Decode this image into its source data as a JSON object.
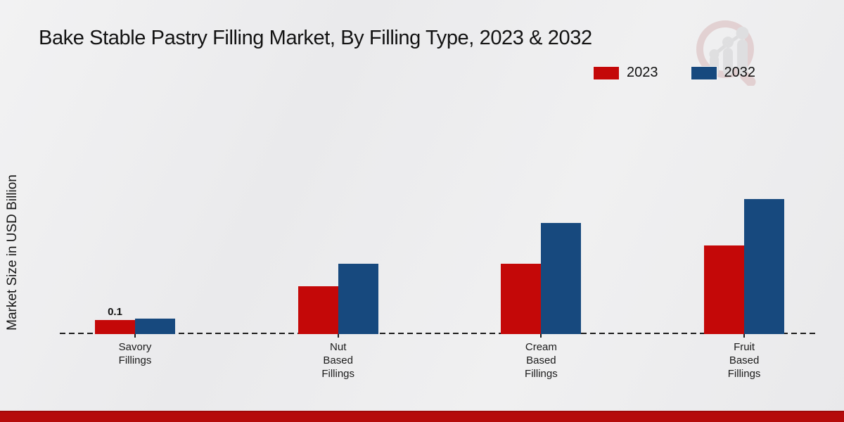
{
  "title": "Bake Stable Pastry Filling Market, By Filling Type, 2023 & 2032",
  "ylabel": "Market Size in USD Billion",
  "colors": {
    "series_2023": "#c40808",
    "series_2032": "#17497e",
    "footer_bar": "#b50b0b",
    "baseline": "#1c1c1c",
    "background": "#ededee",
    "watermark_ring": "#d9b9ba",
    "watermark_bars": "#d2d2d4"
  },
  "legend": {
    "position": "top-right",
    "entries": [
      {
        "label": "2023",
        "color": "#c40808"
      },
      {
        "label": "2032",
        "color": "#17497e"
      }
    ]
  },
  "watermark_icon": "magnifier-growth-chart-logo",
  "chart_data": {
    "type": "bar",
    "title": "Bake Stable Pastry Filling Market, By Filling Type, 2023 & 2032",
    "xlabel": "",
    "ylabel": "Market Size in USD Billion",
    "categories": [
      "Savory Fillings",
      "Nut Based Fillings",
      "Cream Based Fillings",
      "Fruit Based Fillings"
    ],
    "category_lines": [
      [
        "Savory",
        "Fillings"
      ],
      [
        "Nut",
        "Based",
        "Fillings"
      ],
      [
        "Cream",
        "Based",
        "Fillings"
      ],
      [
        "Fruit",
        "Based",
        "Fillings"
      ]
    ],
    "series": [
      {
        "name": "2023",
        "color": "#c40808",
        "values": [
          0.1,
          0.34,
          0.5,
          0.63
        ]
      },
      {
        "name": "2032",
        "color": "#17497e",
        "values": [
          0.11,
          0.5,
          0.79,
          0.96
        ]
      }
    ],
    "annotations": [
      {
        "series": "2023",
        "category": "Savory Fillings",
        "text": "0.1"
      }
    ],
    "ylim": [
      0,
      1.0
    ],
    "y_axis_ticks_visible": false,
    "grid": false,
    "baseline_style": "dashed",
    "legend_position": "top-right"
  }
}
